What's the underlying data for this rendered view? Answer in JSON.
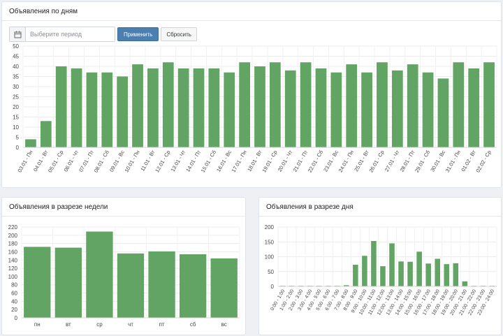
{
  "daily": {
    "title": "Объявления по дням",
    "datepicker": {
      "placeholder": "Выберите период",
      "apply_label": "Применить",
      "reset_label": "Сбросить"
    },
    "chart_data": {
      "type": "bar",
      "color": "#62a463",
      "ylim": [
        0,
        50
      ],
      "yticks": [
        0,
        5,
        10,
        15,
        20,
        25,
        30,
        35,
        40,
        45,
        50
      ],
      "categories": [
        "03.01 - Пн",
        "04.01 - Вт",
        "05.01 - Ср",
        "06.01 - Чт",
        "07.01 - Пт",
        "08.01 - Сб",
        "09.01 - Вс",
        "10.01 - Пн",
        "11.01 - Вт",
        "12.01 - Ср",
        "13.01 - Чт",
        "14.01 - Пт",
        "15.01 - Сб",
        "16.01 - Вс",
        "17.01 - Пн",
        "18.01 - Вт",
        "19.01 - Ср",
        "20.01 - Чт",
        "21.01 - Пт",
        "22.01 - Сб",
        "23.01 - Вс",
        "24.01 - Пн",
        "25.01 - Вт",
        "26.01 - Ср",
        "27.01 - Чт",
        "28.01 - Пт",
        "29.01 - Сб",
        "30.01 - Вс",
        "31.01 - Пн",
        "01.02 - Вт",
        "02.02 - Ср"
      ],
      "values": [
        4,
        13,
        40,
        39,
        37,
        37,
        35,
        41,
        39,
        42,
        39,
        39,
        39,
        37,
        42,
        40,
        42,
        38,
        42,
        39,
        37,
        41,
        37,
        42,
        38,
        41,
        37,
        34,
        42,
        39,
        42
      ]
    }
  },
  "weekly": {
    "title": "Объявления в разрезе недели",
    "chart_data": {
      "type": "bar",
      "color": "#62a463",
      "ylim": [
        0,
        220
      ],
      "yticks": [
        0,
        20,
        40,
        60,
        80,
        100,
        120,
        140,
        160,
        180,
        200,
        220
      ],
      "categories": [
        "пн",
        "вт",
        "ср",
        "чт",
        "пт",
        "сб",
        "вс"
      ],
      "values": [
        172,
        170,
        209,
        156,
        161,
        154,
        144
      ]
    }
  },
  "hourly": {
    "title": "Объявления в разрезе дня",
    "chart_data": {
      "type": "bar",
      "color": "#62a463",
      "ylim": [
        0,
        200
      ],
      "yticks": [
        0,
        50,
        100,
        150,
        200
      ],
      "categories": [
        "0:00 - 1:00",
        "1:00 - 2:00",
        "2:00 - 3:00",
        "3:00 - 4:00",
        "4:00 - 5:00",
        "5:00 - 6:00",
        "6:00 - 7:00",
        "7:00 - 8:00",
        "8:00 - 9:00",
        "9:00 - 10:00",
        "10:00 - 11:00",
        "11:00 - 12:00",
        "12:00 - 13:00",
        "13:00 - 14:00",
        "14:00 - 15:00",
        "15:00 - 16:00",
        "16:00 - 17:00",
        "17:00 - 18:00",
        "18:00 - 19:00",
        "19:00 - 20:00",
        "20:00 - 21:00",
        "21:00 - 22:00",
        "22:00 - 23:00",
        "23:00 - 24:00"
      ],
      "values": [
        2,
        2,
        2,
        2,
        2,
        2,
        2,
        4,
        73,
        103,
        153,
        68,
        145,
        84,
        83,
        117,
        77,
        93,
        75,
        78,
        17,
        2,
        2,
        2
      ]
    }
  }
}
